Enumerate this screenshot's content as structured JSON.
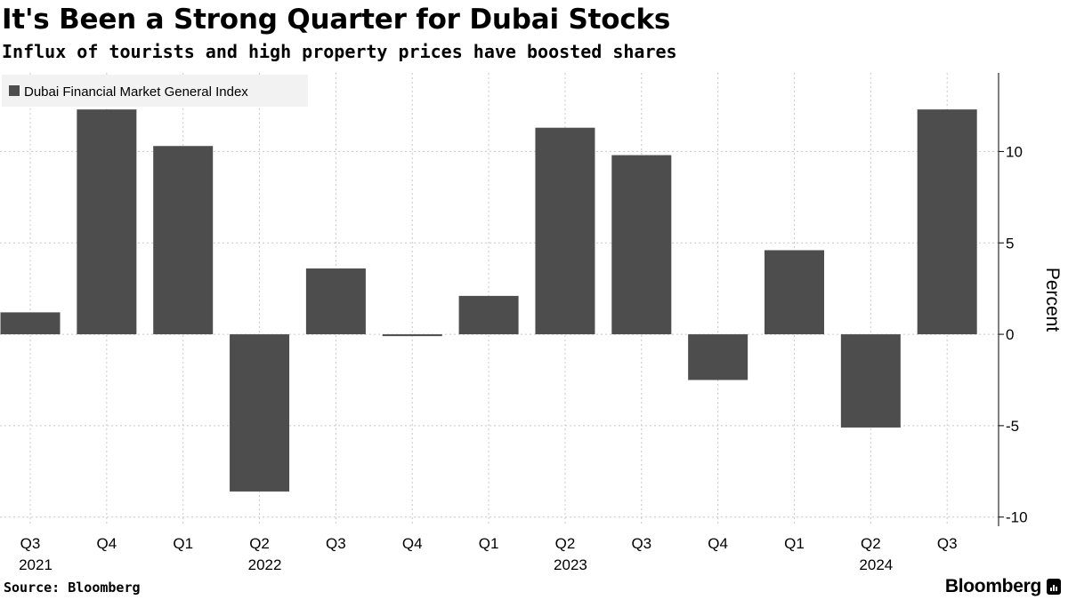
{
  "header": {
    "title": "It's Been a Strong Quarter for Dubai Stocks",
    "subtitle": "Influx of tourists and high property prices have boosted shares"
  },
  "footer": {
    "source": "Source: Bloomberg",
    "brand": "Bloomberg"
  },
  "colors": {
    "bar": "#4d4d4d",
    "grid": "#c8c8c8",
    "axis": "#000000",
    "legend_bg": "#f2f2f2"
  },
  "chart_data": {
    "type": "bar",
    "title": "It's Been a Strong Quarter for Dubai Stocks",
    "subtitle": "Influx of tourists and high property prices have boosted shares",
    "categories": [
      "Q3",
      "Q4",
      "Q1",
      "Q2",
      "Q3",
      "Q4",
      "Q1",
      "Q2",
      "Q3",
      "Q4",
      "Q1",
      "Q2",
      "Q3"
    ],
    "year_labels": [
      {
        "index": 0,
        "label": "2021"
      },
      {
        "index": 3,
        "label": "2022"
      },
      {
        "index": 7,
        "label": "2023"
      },
      {
        "index": 11,
        "label": "2024"
      }
    ],
    "series": [
      {
        "name": "Dubai Financial Market General Index",
        "values": [
          1.2,
          12.3,
          10.3,
          -8.6,
          3.6,
          -0.1,
          2.1,
          11.3,
          9.8,
          -2.5,
          4.6,
          -5.1,
          12.3
        ]
      }
    ],
    "xlabel": "",
    "ylabel": "Percent",
    "ylim": [
      -10.5,
      14.3
    ],
    "yticks": [
      -10,
      -5,
      0,
      5,
      10
    ],
    "ytick_labels": [
      "-10",
      "-5",
      "0",
      "5",
      "10"
    ],
    "grid": true,
    "legend": "top-left",
    "y_axis_side": "right"
  }
}
